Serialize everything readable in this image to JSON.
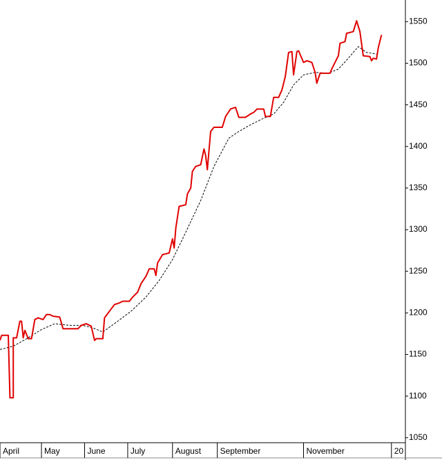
{
  "chart_data": {
    "type": "line",
    "xlim": [
      0,
      244
    ],
    "xticks": [
      {
        "value": 0,
        "label": "April"
      },
      {
        "value": 25,
        "label": "May"
      },
      {
        "value": 51,
        "label": "June"
      },
      {
        "value": 77,
        "label": "July"
      },
      {
        "value": 104,
        "label": "August"
      },
      {
        "value": 131,
        "label": "September"
      },
      {
        "value": 183,
        "label": "November"
      },
      {
        "value": 236,
        "label": "20"
      }
    ],
    "ylim": [
      1044,
      1576
    ],
    "yticks": [
      1050,
      1100,
      1150,
      1200,
      1250,
      1300,
      1350,
      1400,
      1450,
      1500,
      1550
    ],
    "series": [
      {
        "color": "#e00000",
        "dashed": false,
        "x": [
          0,
          1,
          5,
          6,
          8,
          8,
          10,
          12,
          13,
          14,
          15,
          17,
          19,
          21,
          23,
          26,
          28,
          30,
          32,
          36,
          38,
          47,
          49,
          52,
          55,
          57,
          58,
          62,
          63,
          66,
          69,
          72,
          74,
          78,
          80,
          83,
          85,
          88,
          90,
          93,
          94,
          95,
          98,
          102,
          104,
          105,
          106,
          108,
          112,
          113,
          115,
          116,
          118,
          121,
          123,
          124,
          125,
          127,
          129,
          134,
          136,
          139,
          142,
          144,
          148,
          151,
          153,
          155,
          159,
          160,
          163,
          165,
          168,
          170,
          172,
          174,
          176,
          177,
          179,
          180,
          183,
          185,
          188,
          190,
          191,
          193,
          199,
          200,
          202,
          204,
          205,
          208,
          209,
          213,
          215,
          217,
          219,
          223,
          224,
          225,
          227,
          228,
          230
        ],
        "values": [
          1167,
          1173,
          1173,
          1098,
          1098,
          1170,
          1170,
          1190,
          1190,
          1170,
          1179,
          1169,
          1169,
          1192,
          1194,
          1192,
          1198,
          1198,
          1196,
          1195,
          1181,
          1181,
          1185,
          1187,
          1184,
          1167,
          1169,
          1169,
          1194,
          1202,
          1210,
          1212,
          1214,
          1214,
          1219,
          1225,
          1235,
          1244,
          1253,
          1253,
          1245,
          1260,
          1270,
          1272,
          1289,
          1278,
          1302,
          1328,
          1330,
          1343,
          1350,
          1370,
          1376,
          1378,
          1397,
          1389,
          1372,
          1418,
          1423,
          1423,
          1436,
          1445,
          1447,
          1435,
          1435,
          1439,
          1441,
          1445,
          1445,
          1436,
          1436,
          1459,
          1459,
          1468,
          1484,
          1513,
          1514,
          1486,
          1514,
          1515,
          1501,
          1503,
          1501,
          1489,
          1476,
          1488,
          1488,
          1493,
          1501,
          1509,
          1524,
          1526,
          1536,
          1538,
          1551,
          1538,
          1509,
          1508,
          1503,
          1506,
          1505,
          1518,
          1534
        ]
      },
      {
        "color": "#000000",
        "dashed": true,
        "x": [
          0,
          8,
          17,
          25,
          33,
          42,
          50,
          56,
          62,
          71,
          79,
          88,
          96,
          104,
          112,
          121,
          129,
          138,
          144,
          150,
          158,
          165,
          171,
          177,
          183,
          190,
          198,
          204,
          210,
          216,
          221,
          227
        ],
        "values": [
          1156,
          1160,
          1170,
          1180,
          1187,
          1185,
          1185,
          1182,
          1177,
          1190,
          1202,
          1219,
          1239,
          1264,
          1297,
          1335,
          1376,
          1410,
          1418,
          1425,
          1433,
          1439,
          1453,
          1474,
          1486,
          1489,
          1488,
          1493,
          1506,
          1520,
          1513,
          1511
        ]
      }
    ]
  }
}
